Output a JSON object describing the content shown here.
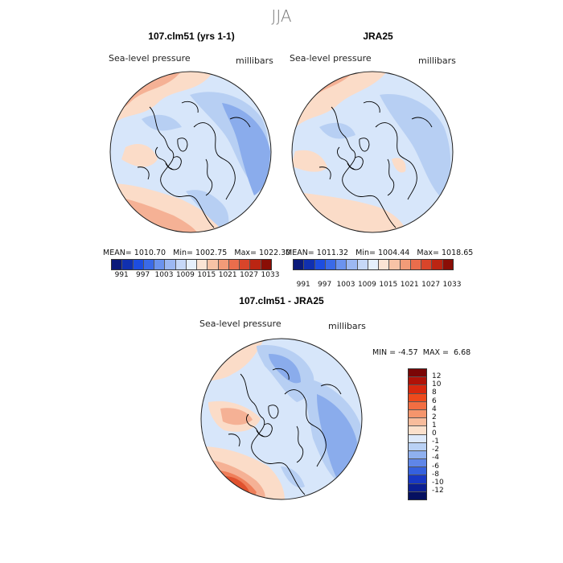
{
  "season": "JJA",
  "panel_model": {
    "title": "107.clm51 (yrs 1-1)",
    "field_label": "Sea-level pressure",
    "units_label": "millibars",
    "stats": {
      "mean_label": "MEAN=",
      "mean": "1010.70",
      "min_label": "Min=",
      "min": "1002.75",
      "max_label": "Max=",
      "max": "1022.30"
    }
  },
  "panel_obs": {
    "title": "JRA25",
    "field_label": "Sea-level pressure",
    "units_label": "millibars",
    "stats": {
      "mean_label": "MEAN=",
      "mean": "1011.32",
      "min_label": "Min=",
      "min": "1004.44",
      "max_label": "Max=",
      "max": "1018.65"
    }
  },
  "panel_diff": {
    "title": "107.clm51 - JRA25",
    "field_label": "Sea-level pressure",
    "units_label": "millibars",
    "stats": {
      "min_label": "MIN =",
      "min": "-4.57",
      "max_label": "MAX =",
      "max": "6.68"
    }
  },
  "abs_colorbar": {
    "ticks": [
      "991",
      "997",
      "1003",
      "1009",
      "1015",
      "1021",
      "1027",
      "1033"
    ],
    "colors": [
      "#0a1a7a",
      "#1030b0",
      "#1d4de0",
      "#3a6ae8",
      "#6b93ee",
      "#9cb8f2",
      "#c6d8f7",
      "#e6f0fc",
      "#fbe4d4",
      "#f7c3a6",
      "#f29b78",
      "#ea6d4c",
      "#d9452a",
      "#bb2512",
      "#8a0e06"
    ]
  },
  "diff_colorbar": {
    "ticks": [
      "12",
      "10",
      "8",
      "6",
      "4",
      "2",
      "1",
      "0",
      "-1",
      "-2",
      "-4",
      "-6",
      "-8",
      "-10",
      "-12"
    ],
    "colors": [
      "#7a0606",
      "#b01208",
      "#d8280e",
      "#ee4a1c",
      "#f26e42",
      "#f5956c",
      "#f8bc9c",
      "#fbe0cc",
      "#dde9fb",
      "#b9d1f5",
      "#8fb0ef",
      "#5f86e8",
      "#3561de",
      "#1838c4",
      "#0b1f93",
      "#051060"
    ]
  },
  "map_colors": {
    "pale_blue": "#d7e6fa",
    "light_blue": "#b7cff3",
    "mid_blue": "#8aacec",
    "peach": "#fbdcc8",
    "salmon": "#f5b195",
    "orange_red": "#ef7f5a",
    "red": "#e0512e"
  }
}
